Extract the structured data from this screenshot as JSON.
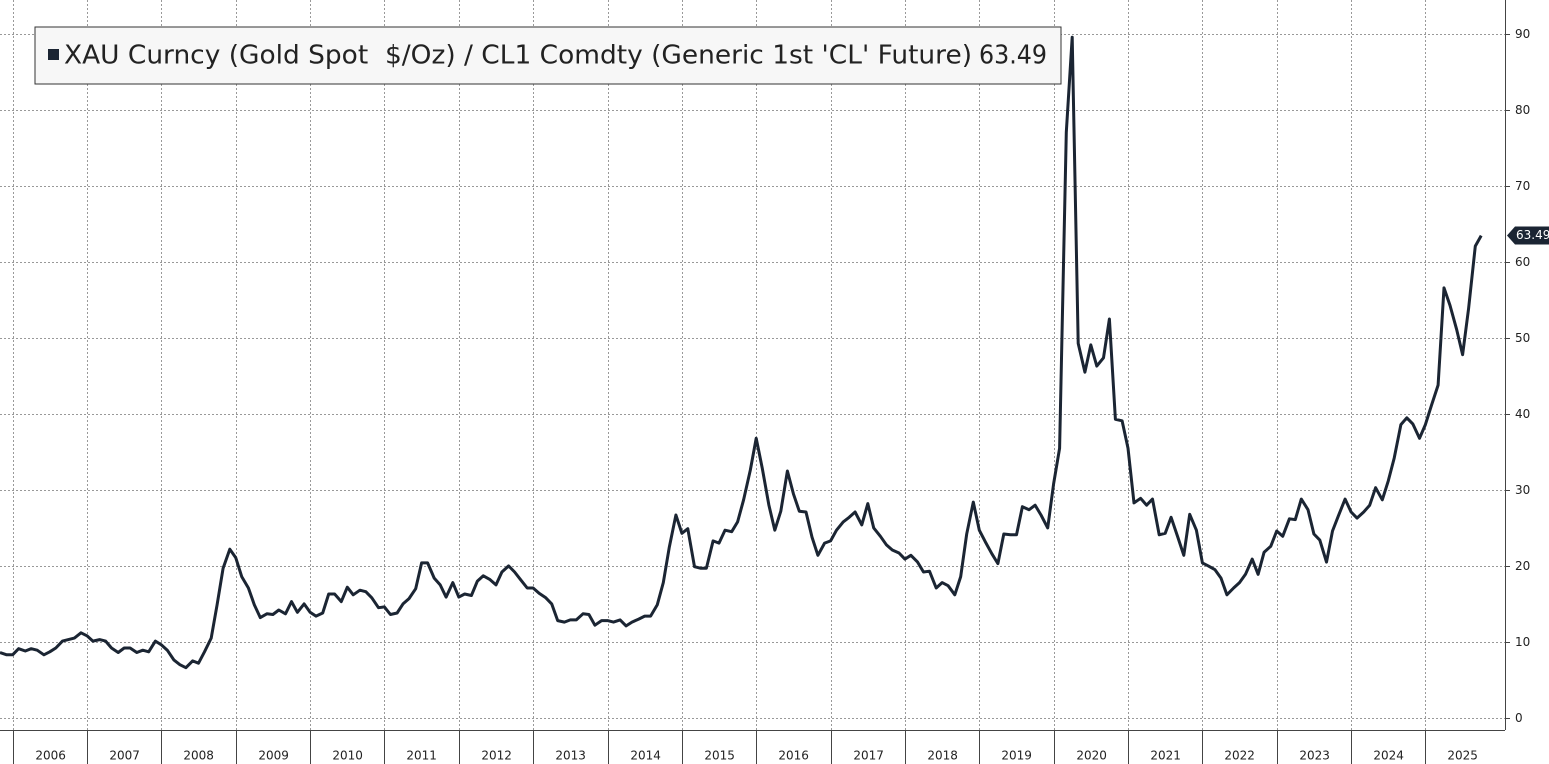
{
  "chart_data": {
    "type": "line",
    "series": [
      {
        "name": "XAU Curncy (Gold Spot  $/Oz) / CL1 Comdty (Generic 1st 'CL' Future)",
        "color": "#1b2533",
        "values": [
          8.6,
          8.3,
          8.3,
          9.1,
          8.8,
          9.1,
          8.9,
          8.3,
          8.7,
          9.2,
          10.1,
          10.3,
          10.5,
          11.2,
          10.8,
          10.1,
          10.3,
          10.1,
          9.2,
          8.6,
          9.2,
          9.2,
          8.6,
          8.9,
          8.7,
          10.1,
          9.6,
          8.9,
          7.6,
          7.0,
          6.6,
          7.5,
          7.2,
          8.7,
          10.5,
          14.9,
          19.7,
          22.2,
          21.1,
          18.6,
          17.1,
          14.9,
          13.2,
          13.7,
          13.6,
          14.2,
          13.7,
          15.3,
          13.9,
          15.0,
          13.9,
          13.4,
          13.8,
          16.3,
          16.3,
          15.3,
          17.2,
          16.2,
          16.8,
          16.6,
          15.8,
          14.5,
          14.6,
          13.6,
          13.8,
          15.0,
          15.7,
          17.0,
          20.4,
          20.4,
          18.4,
          17.5,
          15.9,
          17.8,
          15.9,
          16.3,
          16.1,
          18.0,
          18.7,
          18.2,
          17.5,
          19.2,
          20.0,
          19.2,
          18.2,
          17.1,
          17.1,
          16.4,
          15.8,
          15.0,
          12.8,
          12.6,
          12.9,
          12.9,
          13.7,
          13.6,
          12.2,
          12.8,
          12.8,
          12.6,
          12.9,
          12.1,
          12.6,
          13.0,
          13.4,
          13.4,
          14.9,
          17.8,
          22.4,
          26.7,
          24.3,
          24.9,
          19.9,
          19.7,
          19.7,
          23.3,
          23.0,
          24.7,
          24.5,
          25.8,
          28.7,
          32.6,
          36.8,
          32.9,
          28.0,
          24.7,
          27.2,
          32.5,
          29.5,
          27.2,
          27.1,
          23.8,
          21.4,
          23.0,
          23.3,
          24.7,
          25.8,
          26.4,
          27.1,
          25.4,
          28.2,
          25.0,
          23.9,
          22.8,
          22.1,
          21.7,
          20.9,
          21.4,
          20.5,
          19.2,
          19.3,
          17.1,
          17.8,
          17.4,
          16.2,
          18.6,
          24.2,
          28.4,
          24.7,
          23.2,
          21.6,
          20.3,
          24.2,
          24.1,
          24.1,
          27.8,
          27.4,
          28.0,
          26.7,
          25.0,
          30.8,
          35.5,
          77.1,
          89.6,
          49.3,
          45.5,
          49.1,
          46.3,
          47.4,
          52.5,
          39.3,
          39.1,
          35.5,
          28.3,
          28.9,
          28.0,
          28.8,
          24.1,
          24.3,
          26.4,
          23.8,
          21.4,
          26.8,
          24.7,
          20.4,
          20.0,
          19.5,
          18.4,
          16.2,
          17.1,
          17.8,
          18.9,
          20.9,
          18.9,
          21.8,
          22.6,
          24.6,
          23.9,
          26.2,
          26.1,
          28.8,
          27.4,
          24.2,
          23.4,
          20.5,
          24.6,
          26.6,
          28.8,
          27.1,
          26.3,
          27.1,
          28.0,
          30.3,
          28.7,
          31.2,
          34.2,
          38.6,
          39.5,
          38.7,
          36.8,
          38.6,
          41.1,
          43.8,
          56.6,
          54.3,
          51.1,
          47.8,
          53.9,
          62.1,
          63.49
        ]
      }
    ],
    "x": [
      2005.83,
      2005.92,
      2006.0,
      2006.08,
      2006.17,
      2006.25,
      2006.33,
      2006.42,
      2006.5,
      2006.58,
      2006.67,
      2006.75,
      2006.83,
      2006.92,
      2007.0,
      2007.08,
      2007.17,
      2007.25,
      2007.33,
      2007.42,
      2007.5,
      2007.58,
      2007.67,
      2007.75,
      2007.83,
      2007.92,
      2008.0,
      2008.08,
      2008.17,
      2008.25,
      2008.33,
      2008.42,
      2008.5,
      2008.58,
      2008.67,
      2008.75,
      2008.83,
      2008.92,
      2009.0,
      2009.08,
      2009.17,
      2009.25,
      2009.33,
      2009.42,
      2009.5,
      2009.58,
      2009.67,
      2009.75,
      2009.83,
      2009.92,
      2010.0,
      2010.08,
      2010.17,
      2010.25,
      2010.33,
      2010.42,
      2010.5,
      2010.58,
      2010.67,
      2010.75,
      2010.83,
      2010.92,
      2011.0,
      2011.08,
      2011.17,
      2011.25,
      2011.33,
      2011.42,
      2011.5,
      2011.58,
      2011.67,
      2011.75,
      2011.83,
      2011.92,
      2012.0,
      2012.08,
      2012.17,
      2012.25,
      2012.33,
      2012.42,
      2012.5,
      2012.58,
      2012.67,
      2012.75,
      2012.83,
      2012.92,
      2013.0,
      2013.08,
      2013.17,
      2013.25,
      2013.33,
      2013.42,
      2013.5,
      2013.58,
      2013.67,
      2013.75,
      2013.83,
      2013.92,
      2014.0,
      2014.08,
      2014.17,
      2014.25,
      2014.33,
      2014.42,
      2014.5,
      2014.58,
      2014.67,
      2014.75,
      2014.83,
      2014.92,
      2015.0,
      2015.08,
      2015.17,
      2015.25,
      2015.33,
      2015.42,
      2015.5,
      2015.58,
      2015.67,
      2015.75,
      2015.83,
      2015.92,
      2016.0,
      2016.08,
      2016.17,
      2016.25,
      2016.33,
      2016.42,
      2016.5,
      2016.58,
      2016.67,
      2016.75,
      2016.83,
      2016.92,
      2017.0,
      2017.08,
      2017.17,
      2017.25,
      2017.33,
      2017.42,
      2017.5,
      2017.58,
      2017.67,
      2017.75,
      2017.83,
      2017.92,
      2018.0,
      2018.08,
      2018.17,
      2018.25,
      2018.33,
      2018.42,
      2018.5,
      2018.58,
      2018.67,
      2018.75,
      2018.83,
      2018.92,
      2019.0,
      2019.08,
      2019.17,
      2019.25,
      2019.33,
      2019.42,
      2019.5,
      2019.58,
      2019.67,
      2019.75,
      2019.83,
      2019.92,
      2020.0,
      2020.08,
      2020.17,
      2020.25,
      2020.33,
      2020.42,
      2020.5,
      2020.58,
      2020.67,
      2020.75,
      2020.83,
      2020.92,
      2021.0,
      2021.08,
      2021.17,
      2021.25,
      2021.33,
      2021.42,
      2021.5,
      2021.58,
      2021.67,
      2021.75,
      2021.83,
      2021.92,
      2022.0,
      2022.08,
      2022.17,
      2022.25,
      2022.33,
      2022.42,
      2022.5,
      2022.58,
      2022.67,
      2022.75,
      2022.83,
      2022.92,
      2023.0,
      2023.08,
      2023.17,
      2023.25,
      2023.33,
      2023.42,
      2023.5,
      2023.58,
      2023.67,
      2023.75,
      2023.83,
      2023.92,
      2024.0,
      2024.08,
      2024.17,
      2024.25,
      2024.33,
      2024.42,
      2024.5,
      2024.58,
      2024.67,
      2024.75,
      2024.83,
      2024.92,
      2025.0,
      2025.08,
      2025.17,
      2025.25,
      2025.33,
      2025.42,
      2025.5,
      2025.58,
      2025.67,
      2025.75
    ],
    "xlim": [
      2005.83,
      2026.07
    ],
    "xticks": [
      2006,
      2007,
      2008,
      2009,
      2010,
      2011,
      2012,
      2013,
      2014,
      2015,
      2016,
      2017,
      2018,
      2019,
      2020,
      2021,
      2022,
      2023,
      2024,
      2025
    ],
    "ylim": [
      -1.6,
      94.5
    ],
    "yticks": [
      0,
      10,
      20,
      30,
      40,
      50,
      60,
      70,
      80,
      90
    ],
    "grid": true
  }
}
